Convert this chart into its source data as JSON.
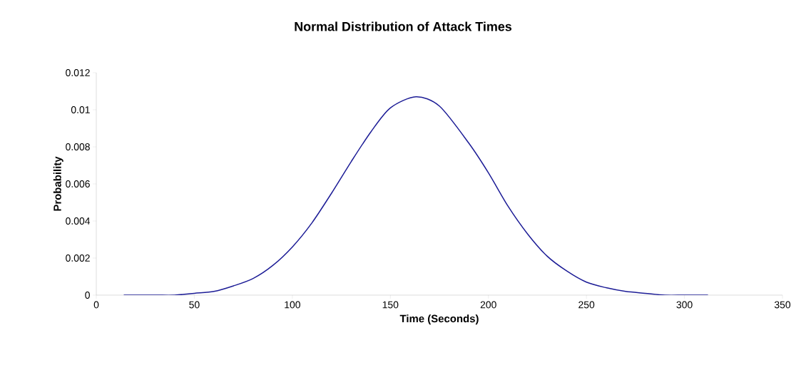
{
  "chart_data": {
    "type": "line",
    "title": "Normal Distribution of Attack Times",
    "xlabel": "Time (Seconds)",
    "ylabel": "Probability",
    "x": [
      14,
      30,
      40,
      50,
      60,
      70,
      80,
      90,
      100,
      110,
      120,
      130,
      140,
      150,
      163,
      175,
      190,
      200,
      210,
      220,
      230,
      240,
      250,
      260,
      270,
      280,
      290,
      300,
      312
    ],
    "series": [
      {
        "color": "#1c1c96",
        "values": [
          0,
          0,
          0,
          0.0001,
          0.0002,
          0.0005,
          0.0009,
          0.0016,
          0.0026,
          0.0039,
          0.0055,
          0.0072,
          0.0088,
          0.0101,
          0.0107,
          0.0102,
          0.0082,
          0.0066,
          0.0048,
          0.0033,
          0.0021,
          0.0013,
          0.0007,
          0.0004,
          0.0002,
          0.0001,
          0,
          0,
          0
        ]
      }
    ],
    "xlim": [
      0,
      350
    ],
    "ylim": [
      0,
      0.012
    ],
    "xticks": [
      0,
      50,
      100,
      150,
      200,
      250,
      300,
      350
    ],
    "yticks": [
      0,
      0.002,
      0.004,
      0.006,
      0.008,
      0.01,
      0.012
    ],
    "grid": false,
    "marker": "none",
    "line_style": "solid"
  }
}
